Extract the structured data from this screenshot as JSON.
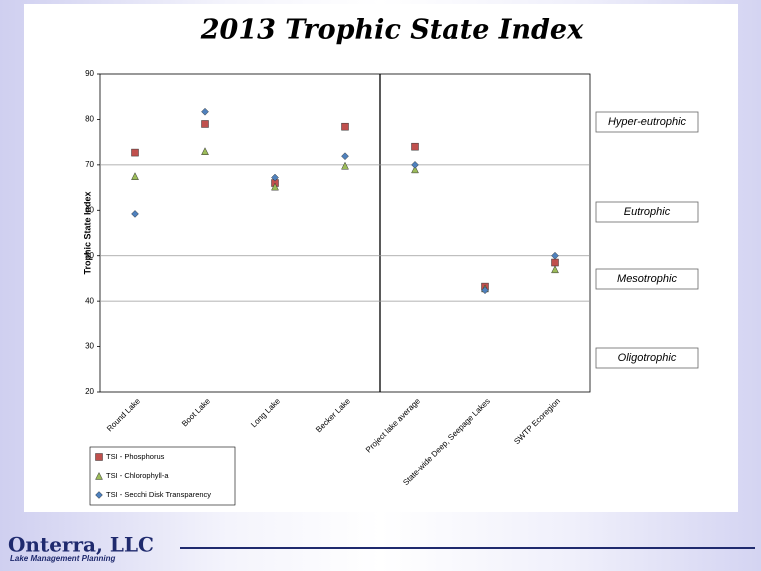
{
  "chart_data": {
    "type": "scatter",
    "title": "2013 Trophic State Index",
    "y_label": "Trophic State Index",
    "categories": [
      "Round Lake",
      "Boot Lake",
      "Long Lake",
      "Becker Lake",
      "Project lake average",
      "State-wide Deep, Seepage Lakes",
      "SWTP Ecoregion"
    ],
    "series": [
      {
        "name": "TSI - Phosphorus",
        "color": "#c0504d",
        "marker": "square",
        "values": [
          72.7,
          79,
          66,
          78.4,
          74,
          43.2,
          48.5
        ]
      },
      {
        "name": "TSI - Chlorophyll-a",
        "color": "#9bbb59",
        "marker": "triangle",
        "values": [
          67.5,
          73,
          65.2,
          69.8,
          69,
          42.8,
          47
        ]
      },
      {
        "name": "TSI - Secchi Disk Transparency",
        "color": "#4f81bd",
        "marker": "diamond",
        "values": [
          59.2,
          81.7,
          67.2,
          71.9,
          70,
          42.4,
          50
        ]
      }
    ],
    "ylim": [
      20,
      90
    ],
    "yticks": [
      20,
      30,
      40,
      50,
      60,
      70,
      80,
      90
    ],
    "thresholds": [
      40,
      50,
      70
    ],
    "annotations": [
      "Hyper-eutrophic",
      "Eutrophic",
      "Mesotrophic",
      "Oligotrophic"
    ]
  },
  "footer": {
    "company": "Onterra, LLC",
    "tagline": "Lake Management Planning"
  }
}
